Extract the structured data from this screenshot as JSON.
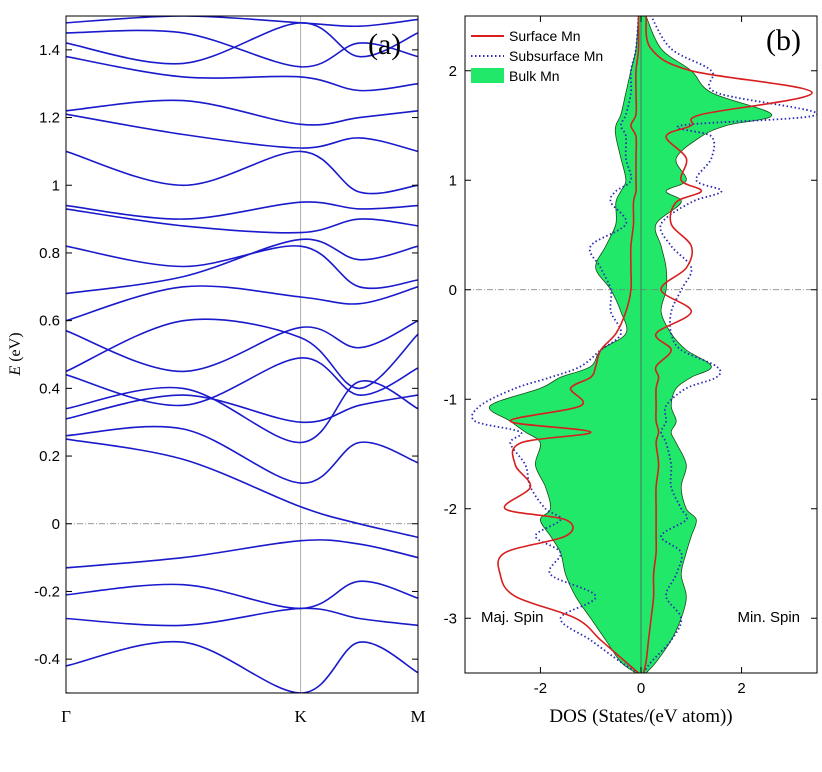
{
  "chart_data": [
    {
      "type": "line",
      "panel_label": "(a)",
      "title": "",
      "xlabel": "",
      "ylabel": "E (eV)",
      "ylabel_symbol": "E",
      "ylabel_unit": "(eV)",
      "ylim": [
        -0.5,
        1.5
      ],
      "yticks": [
        "-0.4",
        "-0.2",
        "0",
        "0.2",
        "0.4",
        "0.6",
        "0.8",
        "1",
        "1.2",
        "1.4"
      ],
      "xtick_labels": [
        "Γ",
        "K",
        "M"
      ],
      "xtick_positions": [
        0,
        1,
        1.5
      ],
      "fermi_level": 0,
      "color": "#1a1acc",
      "band_knots": [
        [
          -0.5,
          -0.52,
          -0.58,
          -0.53,
          -0.5
        ],
        [
          -0.42,
          -0.35,
          -0.5,
          -0.35,
          -0.44
        ],
        [
          -0.28,
          -0.3,
          -0.25,
          -0.28,
          -0.3
        ],
        [
          -0.21,
          -0.18,
          -0.25,
          -0.17,
          -0.22
        ],
        [
          -0.13,
          -0.1,
          -0.05,
          -0.06,
          -0.1
        ],
        [
          0.25,
          0.19,
          0.05,
          0.0,
          -0.04
        ],
        [
          0.26,
          0.28,
          0.12,
          0.24,
          0.18
        ],
        [
          0.31,
          0.38,
          0.3,
          0.35,
          0.38
        ],
        [
          0.34,
          0.4,
          0.24,
          0.42,
          0.34
        ],
        [
          0.44,
          0.35,
          0.49,
          0.38,
          0.46
        ],
        [
          0.45,
          0.6,
          0.55,
          0.4,
          0.56
        ],
        [
          0.57,
          0.45,
          0.58,
          0.52,
          0.6
        ],
        [
          0.6,
          0.7,
          0.67,
          0.65,
          0.7
        ],
        [
          0.68,
          0.73,
          0.84,
          0.78,
          0.82
        ],
        [
          0.82,
          0.76,
          0.82,
          0.7,
          0.72
        ],
        [
          0.93,
          0.88,
          0.86,
          0.9,
          0.88
        ],
        [
          0.94,
          0.9,
          0.95,
          0.93,
          0.94
        ],
        [
          1.1,
          1.0,
          1.1,
          0.98,
          1.0
        ],
        [
          1.21,
          1.15,
          1.11,
          1.14,
          1.1
        ],
        [
          1.22,
          1.25,
          1.18,
          1.2,
          1.22
        ],
        [
          1.38,
          1.32,
          1.32,
          1.28,
          1.3
        ],
        [
          1.42,
          1.36,
          1.48,
          1.38,
          1.45
        ],
        [
          1.45,
          1.45,
          1.35,
          1.42,
          1.38
        ],
        [
          1.48,
          1.5,
          1.48,
          1.47,
          1.49
        ]
      ]
    },
    {
      "type": "area",
      "panel_label": "(b)",
      "title": "",
      "xlabel": "DOS (States/(eV atom))",
      "ylabel": "",
      "xlim": [
        -3.5,
        3.5
      ],
      "ylim": [
        -3.5,
        2.5
      ],
      "xticks": [
        "-2",
        "0",
        "2"
      ],
      "xtick_values": [
        -2,
        0,
        2
      ],
      "yticks": [
        "-3",
        "-2",
        "-1",
        "0",
        "1",
        "2"
      ],
      "ytick_values": [
        -3,
        -2,
        -1,
        0,
        1,
        2
      ],
      "fermi_level": 0,
      "annotations": {
        "left": "Maj. Spin",
        "right": "Min. Spin"
      },
      "legend": {
        "position": "top-left"
      },
      "energy": [
        -3.5,
        -3.4,
        -3.2,
        -3.0,
        -2.8,
        -2.6,
        -2.4,
        -2.25,
        -2.1,
        -2.0,
        -1.8,
        -1.6,
        -1.4,
        -1.3,
        -1.2,
        -1.06,
        -0.9,
        -0.8,
        -0.7,
        -0.55,
        -0.4,
        -0.2,
        0.0,
        0.2,
        0.4,
        0.6,
        0.8,
        0.9,
        1.0,
        1.2,
        1.4,
        1.5,
        1.6,
        1.8,
        2.0,
        2.2,
        2.5
      ],
      "series": [
        {
          "name": "Surface Mn",
          "style": "solid",
          "color": "#d81e1e",
          "majority": [
            -0.05,
            -0.3,
            -0.8,
            -1.3,
            -2.5,
            -2.8,
            -2.7,
            -1.5,
            -1.5,
            -2.7,
            -2.2,
            -2.5,
            -2.4,
            -1.0,
            -2.6,
            -1.2,
            -1.4,
            -1.0,
            -0.9,
            -0.8,
            -0.5,
            -0.3,
            -0.2,
            -0.2,
            -0.2,
            -0.15,
            -0.15,
            -0.1,
            -0.1,
            -0.1,
            -0.1,
            -0.2,
            -0.1,
            -0.1,
            -0.1,
            -0.05,
            -0.05
          ],
          "minority": [
            0.05,
            0.1,
            0.15,
            0.2,
            0.25,
            0.25,
            0.3,
            0.3,
            0.3,
            0.3,
            0.3,
            0.35,
            0.3,
            0.35,
            0.3,
            0.3,
            0.3,
            0.35,
            0.3,
            0.6,
            0.3,
            1.0,
            0.4,
            0.9,
            1.0,
            0.6,
            0.7,
            1.2,
            0.8,
            0.9,
            0.5,
            1.0,
            1.2,
            3.4,
            1.0,
            0.2,
            0.1
          ]
        },
        {
          "name": "Subsurface Mn",
          "style": "dotted",
          "color": "#2a2ab4",
          "majority": [
            -0.05,
            -0.4,
            -1.0,
            -1.6,
            -0.9,
            -1.8,
            -1.6,
            -2.1,
            -1.6,
            -1.9,
            -2.2,
            -2.3,
            -2.6,
            -2.4,
            -3.3,
            -3.2,
            -2.5,
            -1.8,
            -1.2,
            -0.8,
            -0.4,
            -0.6,
            -0.6,
            -0.8,
            -1.0,
            -0.3,
            -0.6,
            -0.5,
            -0.2,
            -0.3,
            -0.3,
            -0.4,
            -0.3,
            -0.2,
            -0.2,
            -0.1,
            -0.05
          ],
          "minority": [
            0.05,
            0.2,
            0.6,
            0.8,
            0.5,
            0.7,
            0.8,
            0.4,
            0.9,
            0.8,
            0.6,
            0.6,
            0.5,
            0.4,
            0.5,
            0.5,
            0.9,
            1.5,
            1.5,
            0.8,
            0.6,
            0.6,
            0.8,
            1.0,
            0.6,
            0.4,
            1.0,
            1.6,
            1.1,
            1.4,
            1.4,
            0.8,
            3.5,
            1.5,
            1.4,
            0.6,
            0.2
          ]
        },
        {
          "name": "Bulk Mn",
          "style": "filled",
          "color": "#22e86a",
          "majority": [
            -0.1,
            -0.4,
            -0.7,
            -1.0,
            -1.3,
            -1.5,
            -1.6,
            -1.8,
            -2.0,
            -1.8,
            -1.9,
            -2.1,
            -2.0,
            -2.3,
            -2.6,
            -3.0,
            -2.0,
            -1.6,
            -1.0,
            -0.8,
            -0.3,
            -0.4,
            -0.6,
            -0.9,
            -0.7,
            -0.5,
            -0.5,
            -0.4,
            -0.3,
            -0.4,
            -0.5,
            -0.5,
            -0.4,
            -0.3,
            -0.2,
            -0.1,
            -0.05
          ],
          "minority": [
            0.1,
            0.3,
            0.6,
            0.8,
            0.9,
            0.8,
            0.9,
            1.0,
            1.1,
            0.9,
            0.8,
            0.9,
            0.7,
            0.6,
            0.7,
            0.6,
            0.7,
            1.0,
            1.4,
            0.9,
            0.6,
            0.4,
            0.5,
            0.5,
            0.4,
            0.3,
            0.8,
            0.5,
            0.9,
            0.7,
            1.2,
            1.7,
            2.6,
            1.4,
            1.0,
            0.4,
            0.1
          ]
        }
      ]
    }
  ]
}
